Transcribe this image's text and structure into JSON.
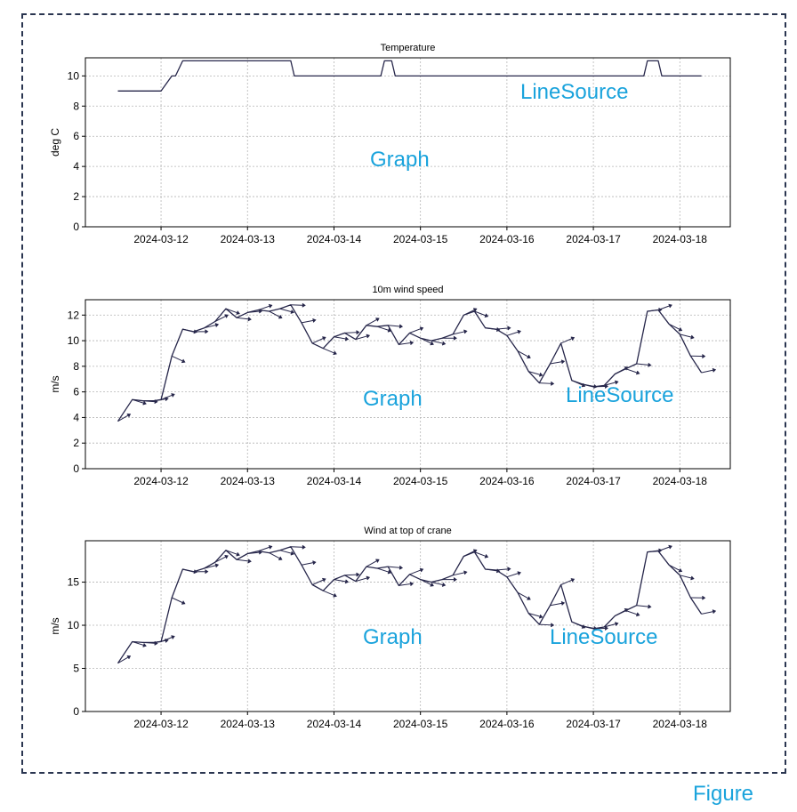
{
  "figure_label": "Figure",
  "overlays": [
    "LineSource",
    "Graph",
    "Graph",
    "LineSource",
    "Graph",
    "LineSource"
  ],
  "colors": {
    "series": "#26264a",
    "overlay": "#1aa3dc",
    "grid": "#b5b5b5"
  },
  "chart_data": [
    {
      "type": "line",
      "title": "Temperature",
      "ylabel": "deg C",
      "xlabel": "",
      "ylim": [
        0,
        11.2
      ],
      "yticks": [
        0,
        2,
        4,
        6,
        8,
        10
      ],
      "xlim": [
        "2024-03-11 03:00",
        "2024-03-18 14:00"
      ],
      "xticks": [
        "2024-03-12",
        "2024-03-13",
        "2024-03-14",
        "2024-03-15",
        "2024-03-16",
        "2024-03-17",
        "2024-03-18"
      ],
      "grid": true,
      "series": [
        {
          "x": [
            "2024-03-11 12:00",
            "2024-03-12 00:00",
            "2024-03-12 03:00",
            "2024-03-12 04:00",
            "2024-03-12 06:00",
            "2024-03-12 12:00",
            "2024-03-13 00:00",
            "2024-03-13 12:00",
            "2024-03-13 13:00",
            "2024-03-14 00:00",
            "2024-03-14 13:00",
            "2024-03-14 14:00",
            "2024-03-14 16:00",
            "2024-03-14 17:00",
            "2024-03-15 12:00",
            "2024-03-16 12:00",
            "2024-03-17 12:00",
            "2024-03-17 14:00",
            "2024-03-17 15:00",
            "2024-03-17 18:00",
            "2024-03-17 19:00",
            "2024-03-18 06:00"
          ],
          "y": [
            9,
            9,
            10,
            10,
            11,
            11,
            11,
            11,
            10,
            10,
            10,
            11,
            11,
            10,
            10,
            10,
            10,
            10,
            11,
            11,
            10,
            10
          ]
        }
      ]
    },
    {
      "type": "line",
      "title": "10m wind speed",
      "ylabel": "m/s",
      "xlabel": "",
      "ylim": [
        0,
        13.2
      ],
      "yticks": [
        0,
        2,
        4,
        6,
        8,
        10,
        12
      ],
      "xlim": [
        "2024-03-11 03:00",
        "2024-03-18 14:00"
      ],
      "xticks": [
        "2024-03-12",
        "2024-03-13",
        "2024-03-14",
        "2024-03-15",
        "2024-03-16",
        "2024-03-17",
        "2024-03-18"
      ],
      "grid": true,
      "series": [
        {
          "x": [
            "2024-03-11 12:00",
            "2024-03-11 16:00",
            "2024-03-11 19:00",
            "2024-03-11 22:00",
            "2024-03-12 00:00",
            "2024-03-12 03:00",
            "2024-03-12 06:00",
            "2024-03-12 09:00",
            "2024-03-12 12:00",
            "2024-03-12 15:00",
            "2024-03-12 18:00",
            "2024-03-12 21:00",
            "2024-03-13 00:00",
            "2024-03-13 03:00",
            "2024-03-13 06:00",
            "2024-03-13 09:00",
            "2024-03-13 12:00",
            "2024-03-13 15:00",
            "2024-03-13 18:00",
            "2024-03-13 21:00",
            "2024-03-14 00:00",
            "2024-03-14 03:00",
            "2024-03-14 06:00",
            "2024-03-14 09:00",
            "2024-03-14 12:00",
            "2024-03-14 15:00",
            "2024-03-14 18:00",
            "2024-03-14 21:00",
            "2024-03-15 00:00",
            "2024-03-15 03:00",
            "2024-03-15 06:00",
            "2024-03-15 09:00",
            "2024-03-15 12:00",
            "2024-03-15 15:00",
            "2024-03-15 18:00",
            "2024-03-15 21:00",
            "2024-03-16 00:00",
            "2024-03-16 03:00",
            "2024-03-16 06:00",
            "2024-03-16 09:00",
            "2024-03-16 12:00",
            "2024-03-16 15:00",
            "2024-03-16 18:00",
            "2024-03-16 21:00",
            "2024-03-17 00:00",
            "2024-03-17 03:00",
            "2024-03-17 06:00",
            "2024-03-17 09:00",
            "2024-03-17 12:00",
            "2024-03-17 15:00",
            "2024-03-17 18:00",
            "2024-03-17 21:00",
            "2024-03-18 00:00",
            "2024-03-18 03:00",
            "2024-03-18 06:00"
          ],
          "y": [
            3.7,
            5.4,
            5.3,
            5.3,
            5.4,
            8.8,
            10.9,
            10.7,
            11.0,
            11.5,
            12.5,
            11.8,
            12.2,
            12.4,
            12.3,
            12.5,
            12.8,
            11.4,
            9.8,
            9.4,
            10.3,
            10.6,
            10.1,
            11.2,
            11.1,
            11.2,
            9.7,
            10.6,
            10.2,
            10.0,
            10.2,
            10.5,
            12.0,
            12.3,
            11.0,
            10.9,
            10.4,
            9.2,
            7.6,
            6.7,
            8.2,
            9.8,
            6.9,
            6.6,
            6.4,
            6.5,
            7.4,
            7.8,
            8.2,
            12.3,
            12.4,
            11.3,
            10.5,
            8.8,
            7.5
          ]
        }
      ]
    },
    {
      "type": "line",
      "title": "Wind at top of crane",
      "ylabel": "m/s",
      "xlabel": "",
      "ylim": [
        0,
        19.8
      ],
      "yticks": [
        0,
        5,
        10,
        15
      ],
      "xlim": [
        "2024-03-11 03:00",
        "2024-03-18 14:00"
      ],
      "xticks": [
        "2024-03-12",
        "2024-03-13",
        "2024-03-14",
        "2024-03-15",
        "2024-03-16",
        "2024-03-17",
        "2024-03-18"
      ],
      "grid": true,
      "series": [
        {
          "x": [
            "2024-03-11 12:00",
            "2024-03-11 16:00",
            "2024-03-11 19:00",
            "2024-03-11 22:00",
            "2024-03-12 00:00",
            "2024-03-12 03:00",
            "2024-03-12 06:00",
            "2024-03-12 09:00",
            "2024-03-12 12:00",
            "2024-03-12 15:00",
            "2024-03-12 18:00",
            "2024-03-12 21:00",
            "2024-03-13 00:00",
            "2024-03-13 03:00",
            "2024-03-13 06:00",
            "2024-03-13 09:00",
            "2024-03-13 12:00",
            "2024-03-13 15:00",
            "2024-03-13 18:00",
            "2024-03-13 21:00",
            "2024-03-14 00:00",
            "2024-03-14 03:00",
            "2024-03-14 06:00",
            "2024-03-14 09:00",
            "2024-03-14 12:00",
            "2024-03-14 15:00",
            "2024-03-14 18:00",
            "2024-03-14 21:00",
            "2024-03-15 00:00",
            "2024-03-15 03:00",
            "2024-03-15 06:00",
            "2024-03-15 09:00",
            "2024-03-15 12:00",
            "2024-03-15 15:00",
            "2024-03-15 18:00",
            "2024-03-15 21:00",
            "2024-03-16 00:00",
            "2024-03-16 03:00",
            "2024-03-16 06:00",
            "2024-03-16 09:00",
            "2024-03-16 12:00",
            "2024-03-16 15:00",
            "2024-03-16 18:00",
            "2024-03-16 21:00",
            "2024-03-17 00:00",
            "2024-03-17 03:00",
            "2024-03-17 06:00",
            "2024-03-17 09:00",
            "2024-03-17 12:00",
            "2024-03-17 15:00",
            "2024-03-17 18:00",
            "2024-03-17 21:00",
            "2024-03-18 00:00",
            "2024-03-18 03:00",
            "2024-03-18 06:00"
          ],
          "y": [
            5.6,
            8.1,
            8.0,
            8.0,
            8.1,
            13.2,
            16.5,
            16.2,
            16.6,
            17.3,
            18.7,
            17.6,
            18.3,
            18.6,
            18.4,
            18.7,
            19.1,
            17.0,
            14.7,
            14.0,
            15.3,
            15.8,
            15.1,
            16.8,
            16.6,
            16.8,
            14.6,
            15.9,
            15.3,
            15.0,
            15.3,
            15.8,
            18.0,
            18.5,
            16.5,
            16.4,
            15.6,
            13.8,
            11.4,
            10.1,
            12.3,
            14.7,
            10.4,
            9.9,
            9.6,
            9.8,
            11.1,
            11.7,
            12.3,
            18.5,
            18.6,
            17.0,
            15.8,
            13.2,
            11.3
          ]
        }
      ]
    }
  ]
}
